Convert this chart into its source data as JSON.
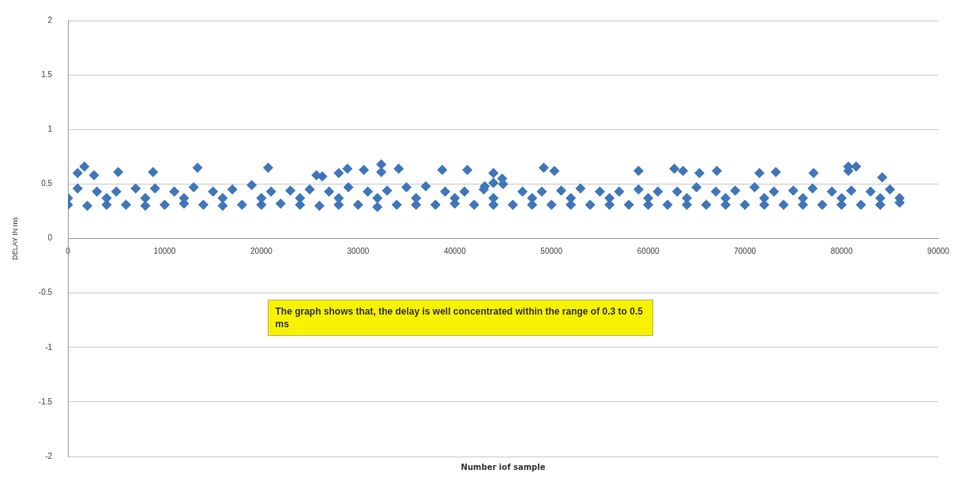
{
  "chart_data": {
    "type": "scatter",
    "xlabel": "Number iof sample",
    "ylabel": "DELAY IN ms",
    "xlim": [
      0,
      90000
    ],
    "xticks": [
      0,
      10000,
      20000,
      30000,
      40000,
      50000,
      60000,
      70000,
      80000,
      90000
    ],
    "ylim": [
      -2,
      2
    ],
    "yticks": [
      -2,
      -1.5,
      -1,
      -0.5,
      0,
      0.5,
      1,
      1.5,
      2
    ],
    "grid": "y",
    "marker": "diamond",
    "annotations": [
      "The graph shows that, the delay is well  concentrated within the range of  0.3 to 0.5 ms"
    ],
    "series": [
      {
        "color": "#3f76b9",
        "x": [
          1000,
          3000,
          5000,
          7000,
          9000,
          11000,
          13000,
          15000,
          17000,
          19000,
          21000,
          23000,
          25000,
          27000,
          29000,
          31000,
          33000,
          35000,
          37000,
          39000,
          41000,
          43000,
          45000,
          47000,
          49000,
          51000,
          53000,
          55000,
          57000,
          59000,
          61000,
          63000,
          65000,
          67000,
          69000,
          71000,
          73000,
          75000,
          77000,
          79000,
          81000,
          83000,
          85000
        ],
        "values": [
          0.46,
          0.43,
          0.43,
          0.46,
          0.46,
          0.43,
          0.47,
          0.43,
          0.45,
          0.49,
          0.43,
          0.44,
          0.45,
          0.43,
          0.47,
          0.43,
          0.44,
          0.47,
          0.48,
          0.43,
          0.43,
          0.45,
          0.5,
          0.43,
          0.43,
          0.44,
          0.46,
          0.43,
          0.43,
          0.45,
          0.43,
          0.43,
          0.47,
          0.43,
          0.44,
          0.47,
          0.43,
          0.44,
          0.46,
          0.43,
          0.44,
          0.43,
          0.45
        ]
      },
      {
        "color": "#3f76b9",
        "x": [
          0,
          4000,
          8000,
          12000,
          16000,
          20000,
          24000,
          28000,
          32000,
          36000,
          40000,
          44000,
          48000,
          52000,
          56000,
          60000,
          64000,
          68000,
          72000,
          76000,
          80000,
          84000,
          86000
        ],
        "values": [
          0.37,
          0.37,
          0.37,
          0.37,
          0.37,
          0.37,
          0.37,
          0.37,
          0.37,
          0.37,
          0.37,
          0.37,
          0.37,
          0.37,
          0.37,
          0.37,
          0.37,
          0.37,
          0.37,
          0.37,
          0.37,
          0.37,
          0.37
        ]
      },
      {
        "color": "#3f76b9",
        "x": [
          0,
          2000,
          4000,
          6000,
          8000,
          10000,
          12000,
          14000,
          16000,
          18000,
          20000,
          22000,
          24000,
          26000,
          28000,
          30000,
          32000,
          34000,
          36000,
          38000,
          40000,
          42000,
          44000,
          46000,
          48000,
          50000,
          52000,
          54000,
          56000,
          58000,
          60000,
          62000,
          64000,
          66000,
          68000,
          70000,
          72000,
          74000,
          76000,
          78000,
          80000,
          82000,
          84000,
          86000
        ],
        "values": [
          0.31,
          0.3,
          0.31,
          0.31,
          0.3,
          0.31,
          0.32,
          0.31,
          0.3,
          0.31,
          0.31,
          0.32,
          0.31,
          0.3,
          0.31,
          0.31,
          0.29,
          0.31,
          0.31,
          0.31,
          0.32,
          0.31,
          0.31,
          0.31,
          0.31,
          0.31,
          0.31,
          0.31,
          0.31,
          0.31,
          0.31,
          0.31,
          0.31,
          0.31,
          0.31,
          0.31,
          0.31,
          0.31,
          0.31,
          0.31,
          0.31,
          0.31,
          0.31,
          0.33
        ]
      },
      {
        "color": "#3f76b9",
        "x": [
          1000,
          1700,
          2700,
          5200,
          8800,
          13400,
          20700,
          25700,
          26300,
          28000,
          28900,
          30600,
          32400,
          32400,
          34200,
          38700,
          41300,
          43100,
          44000,
          44000,
          44900,
          49200,
          50300,
          59000,
          62700,
          63600,
          65300,
          67100,
          71500,
          73200,
          77100,
          80700,
          80700,
          81500,
          84200
        ],
        "values": [
          0.6,
          0.66,
          0.58,
          0.61,
          0.61,
          0.65,
          0.65,
          0.58,
          0.57,
          0.6,
          0.64,
          0.63,
          0.68,
          0.61,
          0.64,
          0.63,
          0.63,
          0.48,
          0.6,
          0.51,
          0.55,
          0.65,
          0.62,
          0.62,
          0.64,
          0.62,
          0.6,
          0.62,
          0.6,
          0.61,
          0.6,
          0.66,
          0.62,
          0.66,
          0.56
        ]
      }
    ]
  }
}
